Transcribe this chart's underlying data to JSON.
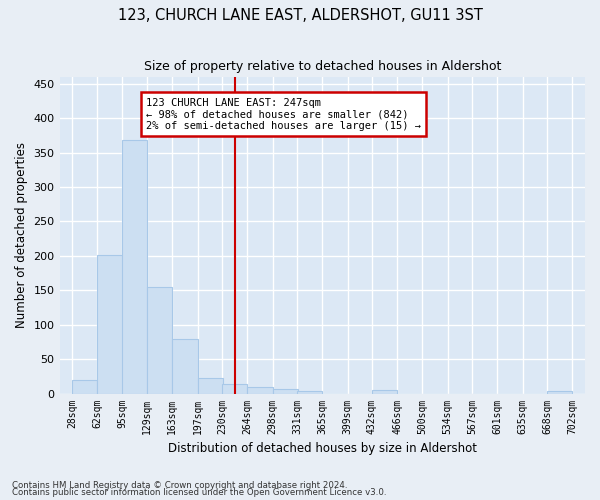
{
  "title": "123, CHURCH LANE EAST, ALDERSHOT, GU11 3ST",
  "subtitle": "Size of property relative to detached houses in Aldershot",
  "xlabel": "Distribution of detached houses by size in Aldershot",
  "ylabel": "Number of detached properties",
  "bar_color": "#ccdff2",
  "bar_edge_color": "#a8c8e8",
  "background_color": "#dce8f5",
  "fig_background_color": "#e8eef5",
  "grid_color": "#ffffff",
  "bins": [
    28,
    62,
    95,
    129,
    163,
    197,
    230,
    264,
    298,
    331,
    365,
    399,
    432,
    466,
    500,
    534,
    567,
    601,
    635,
    668,
    702
  ],
  "bin_labels": [
    "28sqm",
    "62sqm",
    "95sqm",
    "129sqm",
    "163sqm",
    "197sqm",
    "230sqm",
    "264sqm",
    "298sqm",
    "331sqm",
    "365sqm",
    "399sqm",
    "432sqm",
    "466sqm",
    "500sqm",
    "534sqm",
    "567sqm",
    "601sqm",
    "635sqm",
    "668sqm",
    "702sqm"
  ],
  "bar_heights": [
    20,
    202,
    368,
    155,
    79,
    22,
    14,
    9,
    7,
    4,
    0,
    0,
    5,
    0,
    0,
    0,
    0,
    0,
    0,
    3
  ],
  "property_size": 247,
  "property_line_color": "#cc0000",
  "annotation_line1": "123 CHURCH LANE EAST: 247sqm",
  "annotation_line2": "← 98% of detached houses are smaller (842)",
  "annotation_line3": "2% of semi-detached houses are larger (15) →",
  "annotation_box_color": "#ffffff",
  "annotation_box_edge_color": "#cc0000",
  "ylim": [
    0,
    460
  ],
  "yticks": [
    0,
    50,
    100,
    150,
    200,
    250,
    300,
    350,
    400,
    450
  ],
  "footnote1": "Contains HM Land Registry data © Crown copyright and database right 2024.",
  "footnote2": "Contains public sector information licensed under the Open Government Licence v3.0."
}
